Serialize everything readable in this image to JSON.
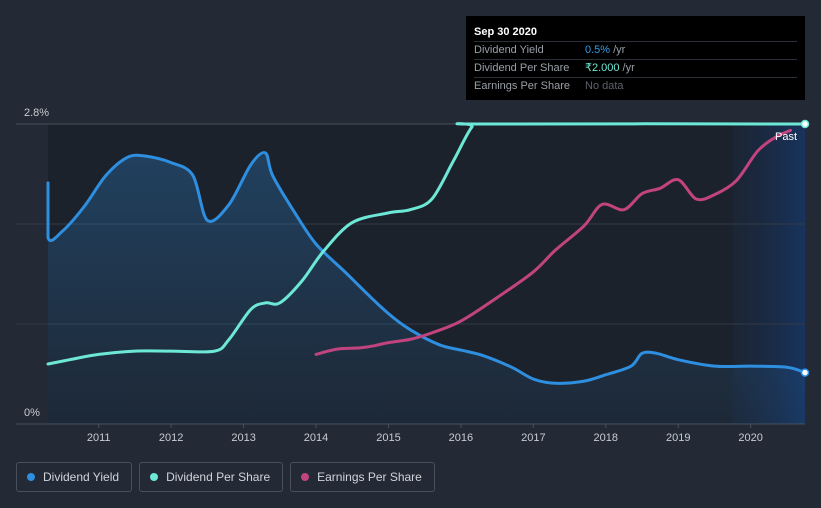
{
  "tooltip": {
    "date": "Sep 30 2020",
    "rows": [
      {
        "label": "Dividend Yield",
        "value": "0.5%",
        "unit": "/yr"
      },
      {
        "label": "Dividend Per Share",
        "value": "₹2.000",
        "unit": "/yr"
      },
      {
        "label": "Earnings Per Share",
        "value": "No data",
        "unit": ""
      }
    ]
  },
  "legend": [
    {
      "label": "Dividend Yield",
      "color": "#2e8fe0"
    },
    {
      "label": "Dividend Per Share",
      "color": "#6de8d6"
    },
    {
      "label": "Earnings Per Share",
      "color": "#c2447f"
    }
  ],
  "past_label": "Past",
  "chart_data": {
    "type": "line",
    "ylim": [
      0,
      2.8
    ],
    "ytick_labels": [
      "2.8%",
      "0%"
    ],
    "xlim": [
      2010.3,
      2020.75
    ],
    "xtick_labels": [
      "2011",
      "2012",
      "2013",
      "2014",
      "2015",
      "2016",
      "2017",
      "2018",
      "2019",
      "2020"
    ],
    "past_region_start": 2019.75,
    "grid": true,
    "legend_position": "bottom-left",
    "series": [
      {
        "name": "Dividend Yield",
        "color": "#2e8fe0",
        "area": true,
        "points": [
          [
            2010.3,
            2.25
          ],
          [
            2010.3,
            1.74
          ],
          [
            2010.5,
            1.8
          ],
          [
            2010.8,
            2.03
          ],
          [
            2011.1,
            2.32
          ],
          [
            2011.4,
            2.49
          ],
          [
            2011.65,
            2.5
          ],
          [
            2012.0,
            2.44
          ],
          [
            2012.3,
            2.32
          ],
          [
            2012.5,
            1.9
          ],
          [
            2012.8,
            2.05
          ],
          [
            2013.1,
            2.42
          ],
          [
            2013.3,
            2.53
          ],
          [
            2013.4,
            2.32
          ],
          [
            2013.7,
            1.98
          ],
          [
            2014.0,
            1.68
          ],
          [
            2014.4,
            1.42
          ],
          [
            2014.7,
            1.22
          ],
          [
            2015.0,
            1.03
          ],
          [
            2015.3,
            0.88
          ],
          [
            2015.7,
            0.74
          ],
          [
            2016.0,
            0.69
          ],
          [
            2016.3,
            0.64
          ],
          [
            2016.7,
            0.53
          ],
          [
            2017.0,
            0.42
          ],
          [
            2017.3,
            0.38
          ],
          [
            2017.7,
            0.4
          ],
          [
            2018.0,
            0.46
          ],
          [
            2018.35,
            0.54
          ],
          [
            2018.5,
            0.66
          ],
          [
            2018.7,
            0.66
          ],
          [
            2019.0,
            0.6
          ],
          [
            2019.5,
            0.54
          ],
          [
            2020.0,
            0.54
          ],
          [
            2020.5,
            0.53
          ],
          [
            2020.75,
            0.48
          ]
        ]
      },
      {
        "name": "Dividend Per Share",
        "color": "#6de8d6",
        "area": false,
        "points": [
          [
            2010.3,
            0.56
          ],
          [
            2010.6,
            0.6
          ],
          [
            2011.0,
            0.65
          ],
          [
            2011.5,
            0.68
          ],
          [
            2012.0,
            0.68
          ],
          [
            2012.6,
            0.68
          ],
          [
            2012.8,
            0.79
          ],
          [
            2013.1,
            1.07
          ],
          [
            2013.3,
            1.13
          ],
          [
            2013.5,
            1.13
          ],
          [
            2013.8,
            1.33
          ],
          [
            2014.1,
            1.61
          ],
          [
            2014.5,
            1.88
          ],
          [
            2015.0,
            1.97
          ],
          [
            2015.3,
            2.0
          ],
          [
            2015.6,
            2.1
          ],
          [
            2015.9,
            2.46
          ],
          [
            2016.15,
            2.77
          ],
          [
            2016.3,
            2.8
          ],
          [
            2020.75,
            2.8
          ]
        ]
      },
      {
        "name": "Earnings Per Share",
        "color": "#c2447f",
        "area": false,
        "points": [
          [
            2014.0,
            0.65
          ],
          [
            2014.3,
            0.7
          ],
          [
            2014.6,
            0.71
          ],
          [
            2014.8,
            0.73
          ],
          [
            2015.0,
            0.76
          ],
          [
            2015.3,
            0.79
          ],
          [
            2015.6,
            0.85
          ],
          [
            2016.0,
            0.96
          ],
          [
            2016.5,
            1.18
          ],
          [
            2017.0,
            1.42
          ],
          [
            2017.3,
            1.62
          ],
          [
            2017.7,
            1.85
          ],
          [
            2017.95,
            2.05
          ],
          [
            2018.25,
            2.0
          ],
          [
            2018.5,
            2.15
          ],
          [
            2018.75,
            2.2
          ],
          [
            2019.0,
            2.28
          ],
          [
            2019.25,
            2.1
          ],
          [
            2019.5,
            2.14
          ],
          [
            2019.8,
            2.27
          ],
          [
            2020.1,
            2.55
          ],
          [
            2020.35,
            2.68
          ],
          [
            2020.55,
            2.74
          ]
        ]
      }
    ]
  }
}
